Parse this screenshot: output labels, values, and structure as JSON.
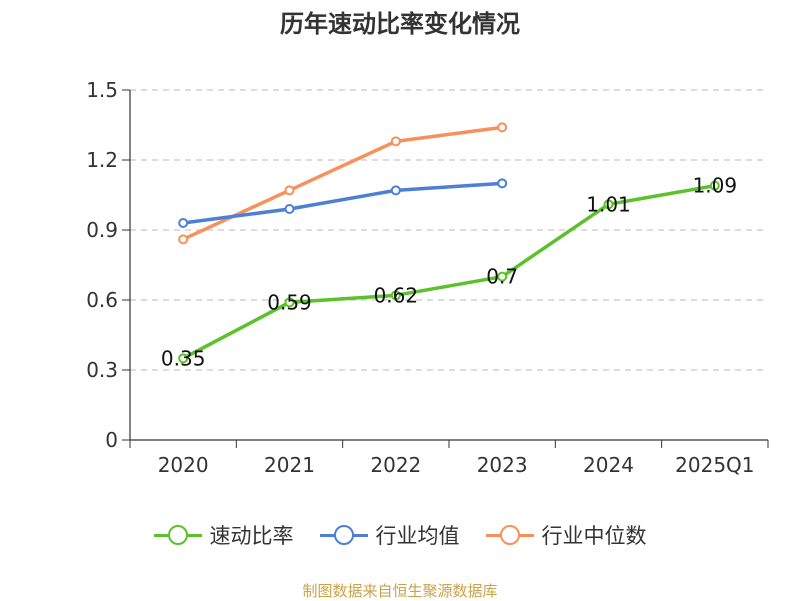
{
  "title": "历年速动比率变化情况",
  "source_note": "制图数据来自恒生聚源数据库",
  "chart_data": {
    "type": "line",
    "categories": [
      "2020",
      "2021",
      "2022",
      "2023",
      "2024",
      "2025Q1"
    ],
    "ylim": [
      0,
      1.5
    ],
    "yticks": [
      0,
      0.3,
      0.6,
      0.9,
      1.2,
      1.5
    ],
    "ytick_labels": [
      "0",
      "0.3",
      "0.6",
      "0.9",
      "1.2",
      "1.5"
    ],
    "grid": true,
    "legend_position": "bottom",
    "series": [
      {
        "name": "速动比率",
        "color": "#5cc12a",
        "values": [
          0.35,
          0.59,
          0.62,
          0.7,
          1.01,
          1.09
        ],
        "labels": [
          "0.35",
          "0.59",
          "0.62",
          "0.7",
          "1.01",
          "1.09"
        ]
      },
      {
        "name": "行业均值",
        "color": "#4d7fd9",
        "values": [
          0.93,
          0.99,
          1.07,
          1.1,
          null,
          null
        ]
      },
      {
        "name": "行业中位数",
        "color": "#f7915c",
        "values": [
          0.86,
          1.07,
          1.28,
          1.34,
          null,
          null
        ]
      }
    ]
  }
}
